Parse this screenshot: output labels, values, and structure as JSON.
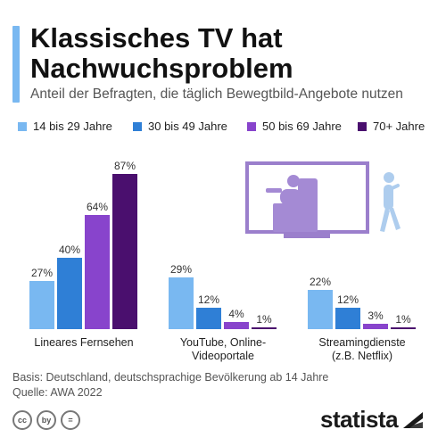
{
  "title": "Klassisches TV hat Nachwuchsproblem",
  "subtitle": "Anteil der Befragten, die täglich Bewegtbild-Angebote nutzen",
  "colors": {
    "s1": "#79b8f1",
    "s2": "#2f7fd6",
    "s3": "#8844cc",
    "s4": "#4a0f6e",
    "tv_frame": "#9b7fcc",
    "tv_figure": "#a48ad4",
    "person": "#aecdee"
  },
  "chart_data": {
    "type": "bar",
    "title": "Klassisches TV hat Nachwuchsproblem",
    "subtitle": "Anteil der Befragten, die täglich Bewegtbild-Angebote nutzen",
    "categories": [
      "Lineares Fernsehen",
      "YouTube, Online-Videoportale",
      "Streamingdienste (z.B. Netflix)"
    ],
    "category_lines": [
      [
        "Lineares Fernsehen"
      ],
      [
        "YouTube, Online-",
        "Videoportale"
      ],
      [
        "Streamingdienste",
        "(z.B. Netflix)"
      ]
    ],
    "series": [
      {
        "name": "14 bis 29 Jahre",
        "values": [
          27,
          29,
          22
        ]
      },
      {
        "name": "30 bis 49 Jahre",
        "values": [
          40,
          12,
          12
        ]
      },
      {
        "name": "50 bis 69 Jahre",
        "values": [
          64,
          4,
          3
        ]
      },
      {
        "name": "70+ Jahre",
        "values": [
          87,
          1,
          1
        ]
      }
    ],
    "value_suffix": "%",
    "ylim": [
      0,
      100
    ],
    "grid": false,
    "legend_position": "top"
  },
  "footer": {
    "basis": "Basis: Deutschland, deutschsprachige Bevölkerung ab 14 Jahre",
    "source": "Quelle: AWA 2022"
  },
  "cc_icons": [
    "cc",
    "by",
    "="
  ],
  "logo": "statista"
}
